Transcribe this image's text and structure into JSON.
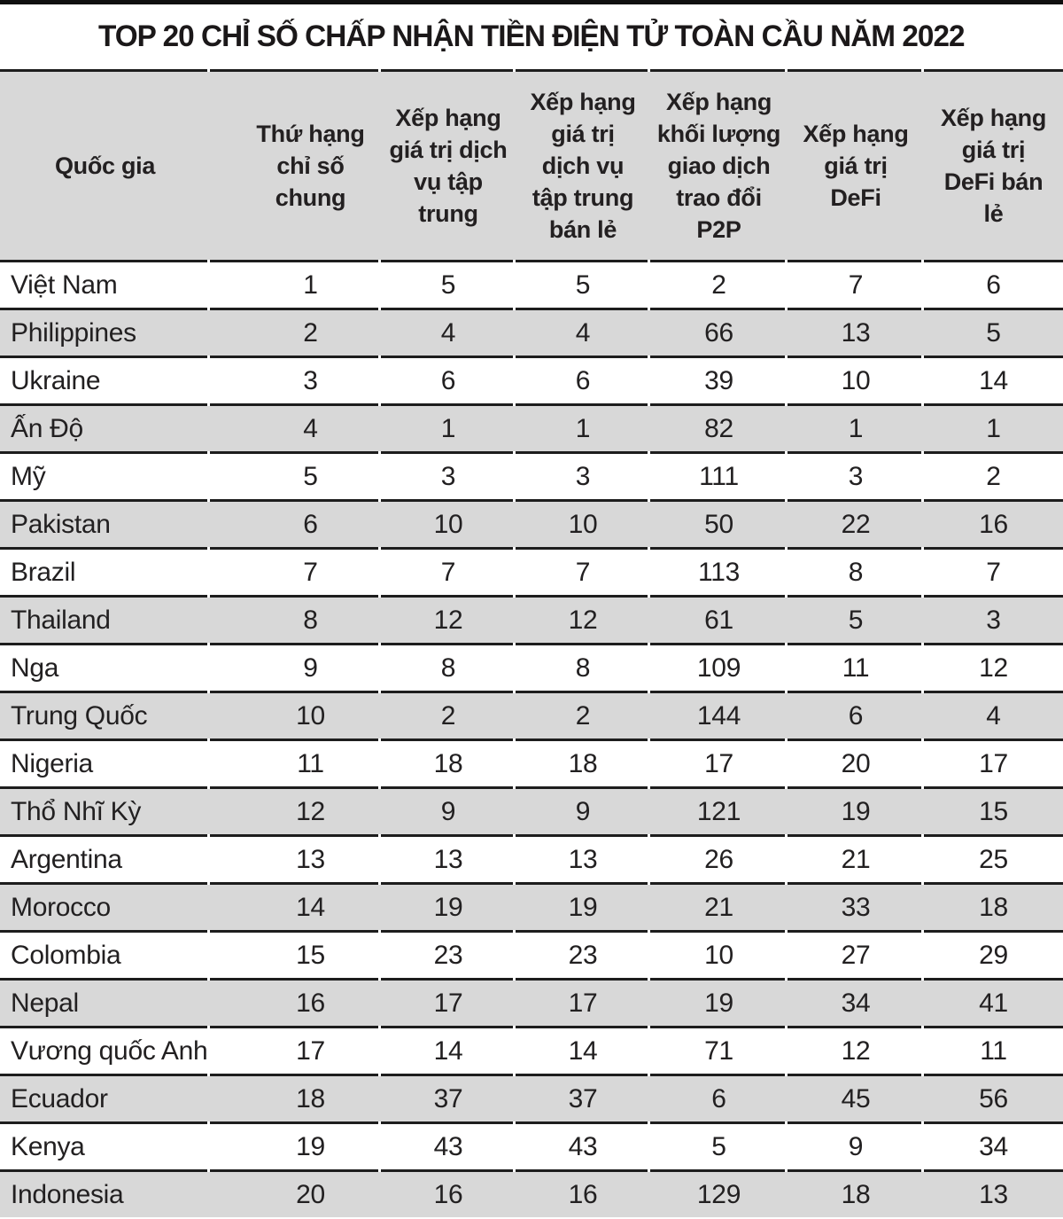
{
  "title": "TOP 20 CHỈ SỐ CHẤP NHẬN TIỀN ĐIỆN TỬ TOÀN CẦU NĂM 2022",
  "colors": {
    "header_bg": "#d8d8d8",
    "alt_row_bg": "#d8d8d8",
    "row_bg": "#ffffff",
    "rule": "#1d1d1d",
    "top_bar": "#0f0f0f",
    "text": "#222021"
  },
  "table": {
    "columns": [
      {
        "label": "Quốc gia"
      },
      {
        "label": "Thứ hạng\nchỉ số\nchung"
      },
      {
        "label": "Xếp hạng\ngiá trị dịch\nvụ tập\ntrung"
      },
      {
        "label": "Xếp hạng\ngiá trị\ndịch vụ\ntập trung\nbán lẻ"
      },
      {
        "label": "Xếp hạng\nkhối lượng\ngiao dịch\ntrao đổi\nP2P"
      },
      {
        "label": "Xếp hạng\ngiá trị\nDeFi"
      },
      {
        "label": "Xếp hạng\ngiá trị\nDeFi bán\nlẻ"
      }
    ],
    "rows": [
      [
        "Việt Nam",
        "1",
        "5",
        "5",
        "2",
        "7",
        "6"
      ],
      [
        "Philippines",
        "2",
        "4",
        "4",
        "66",
        "13",
        "5"
      ],
      [
        "Ukraine",
        "3",
        "6",
        "6",
        "39",
        "10",
        "14"
      ],
      [
        "Ấn Độ",
        "4",
        "1",
        "1",
        "82",
        "1",
        "1"
      ],
      [
        "Mỹ",
        "5",
        "3",
        "3",
        "111",
        "3",
        "2"
      ],
      [
        "Pakistan",
        "6",
        "10",
        "10",
        "50",
        "22",
        "16"
      ],
      [
        "Brazil",
        "7",
        "7",
        "7",
        "113",
        "8",
        "7"
      ],
      [
        "Thailand",
        "8",
        "12",
        "12",
        "61",
        "5",
        "3"
      ],
      [
        "Nga",
        "9",
        "8",
        "8",
        "109",
        "11",
        "12"
      ],
      [
        "Trung Quốc",
        "10",
        "2",
        "2",
        "144",
        "6",
        "4"
      ],
      [
        "Nigeria",
        "11",
        "18",
        "18",
        "17",
        "20",
        "17"
      ],
      [
        "Thổ Nhĩ Kỳ",
        "12",
        "9",
        "9",
        "121",
        "19",
        "15"
      ],
      [
        "Argentina",
        "13",
        "13",
        "13",
        "26",
        "21",
        "25"
      ],
      [
        "Morocco",
        "14",
        "19",
        "19",
        "21",
        "33",
        "18"
      ],
      [
        "Colombia",
        "15",
        "23",
        "23",
        "10",
        "27",
        "29"
      ],
      [
        "Nepal",
        "16",
        "17",
        "17",
        "19",
        "34",
        "41"
      ],
      [
        "Vương quốc Anh",
        "17",
        "14",
        "14",
        "71",
        "12",
        "11"
      ],
      [
        "Ecuador",
        "18",
        "37",
        "37",
        "6",
        "45",
        "56"
      ],
      [
        "Kenya",
        "19",
        "43",
        "43",
        "5",
        "9",
        "34"
      ],
      [
        "Indonesia",
        "20",
        "16",
        "16",
        "129",
        "18",
        "13"
      ]
    ]
  },
  "chart_data": {
    "type": "table",
    "title": "TOP 20 CHỈ SỐ CHẤP NHẬN TIỀN ĐIỆN TỬ TOÀN CẦU NĂM 2022",
    "columns": [
      "Quốc gia",
      "Thứ hạng chỉ số chung",
      "Xếp hạng giá trị dịch vụ tập trung",
      "Xếp hạng giá trị dịch vụ tập trung bán lẻ",
      "Xếp hạng khối lượng giao dịch trao đổi P2P",
      "Xếp hạng giá trị DeFi",
      "Xếp hạng giá trị DeFi bán lẻ"
    ],
    "rows": [
      [
        "Việt Nam",
        1,
        5,
        5,
        2,
        7,
        6
      ],
      [
        "Philippines",
        2,
        4,
        4,
        66,
        13,
        5
      ],
      [
        "Ukraine",
        3,
        6,
        6,
        39,
        10,
        14
      ],
      [
        "Ấn Độ",
        4,
        1,
        1,
        82,
        1,
        1
      ],
      [
        "Mỹ",
        5,
        3,
        3,
        111,
        3,
        2
      ],
      [
        "Pakistan",
        6,
        10,
        10,
        50,
        22,
        16
      ],
      [
        "Brazil",
        7,
        7,
        7,
        113,
        8,
        7
      ],
      [
        "Thailand",
        8,
        12,
        12,
        61,
        5,
        3
      ],
      [
        "Nga",
        9,
        8,
        8,
        109,
        11,
        12
      ],
      [
        "Trung Quốc",
        10,
        2,
        2,
        144,
        6,
        4
      ],
      [
        "Nigeria",
        11,
        18,
        18,
        17,
        20,
        17
      ],
      [
        "Thổ Nhĩ Kỳ",
        12,
        9,
        9,
        121,
        19,
        15
      ],
      [
        "Argentina",
        13,
        13,
        13,
        26,
        21,
        25
      ],
      [
        "Morocco",
        14,
        19,
        19,
        21,
        33,
        18
      ],
      [
        "Colombia",
        15,
        23,
        23,
        10,
        27,
        29
      ],
      [
        "Nepal",
        16,
        17,
        17,
        19,
        34,
        41
      ],
      [
        "Vương quốc Anh",
        17,
        14,
        14,
        71,
        12,
        11
      ],
      [
        "Ecuador",
        18,
        37,
        37,
        6,
        45,
        56
      ],
      [
        "Kenya",
        19,
        43,
        43,
        5,
        9,
        34
      ],
      [
        "Indonesia",
        20,
        16,
        16,
        129,
        18,
        13
      ]
    ]
  }
}
